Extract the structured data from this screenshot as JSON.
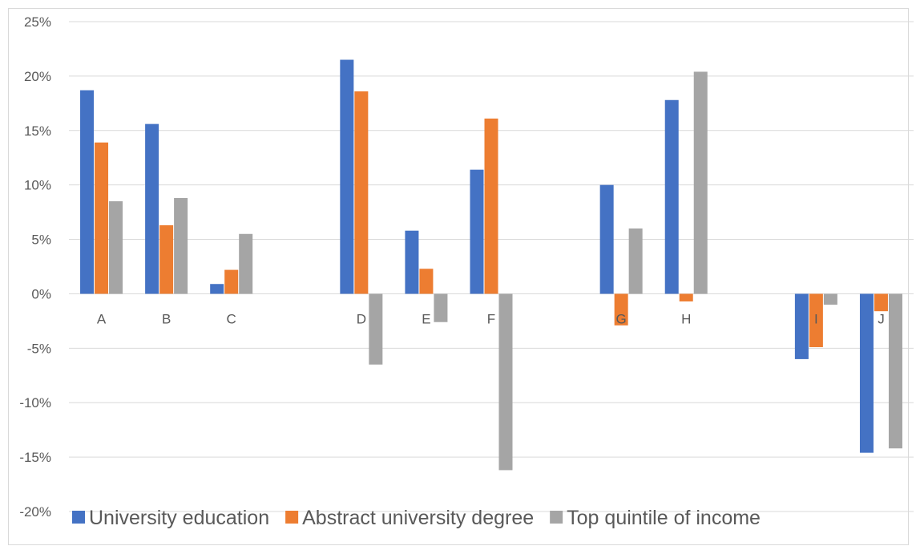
{
  "chart_data": {
    "type": "bar",
    "title": "",
    "xlabel": "",
    "ylabel": "",
    "ylim": [
      -0.2,
      0.25
    ],
    "yticks": [
      0.25,
      0.2,
      0.15,
      0.1,
      0.05,
      0.0,
      -0.05,
      -0.1,
      -0.15,
      -0.2
    ],
    "ytick_labels": [
      "25%",
      "20%",
      "15%",
      "10%",
      "5%",
      "0%",
      "-5%",
      "-10%",
      "-15%",
      "-20%"
    ],
    "grid": true,
    "legend_position": "bottom",
    "categories": [
      "A",
      "B",
      "C",
      "",
      "D",
      "E",
      "F",
      "",
      "G",
      "H",
      "",
      "I",
      "J"
    ],
    "series": [
      {
        "name": "University education",
        "color": "#4472c4",
        "values": [
          0.187,
          0.156,
          0.009,
          null,
          0.215,
          0.058,
          0.114,
          null,
          0.1,
          0.178,
          null,
          -0.06,
          -0.146
        ]
      },
      {
        "name": "Abstract university degree",
        "color": "#ed7d31",
        "values": [
          0.139,
          0.063,
          0.022,
          null,
          0.186,
          0.023,
          0.161,
          null,
          -0.029,
          -0.007,
          null,
          -0.049,
          -0.016
        ]
      },
      {
        "name": "Top quintile of income",
        "color": "#a5a5a5",
        "values": [
          0.085,
          0.088,
          0.055,
          null,
          -0.065,
          -0.026,
          -0.162,
          null,
          0.06,
          0.204,
          null,
          -0.01,
          -0.142
        ]
      }
    ]
  }
}
